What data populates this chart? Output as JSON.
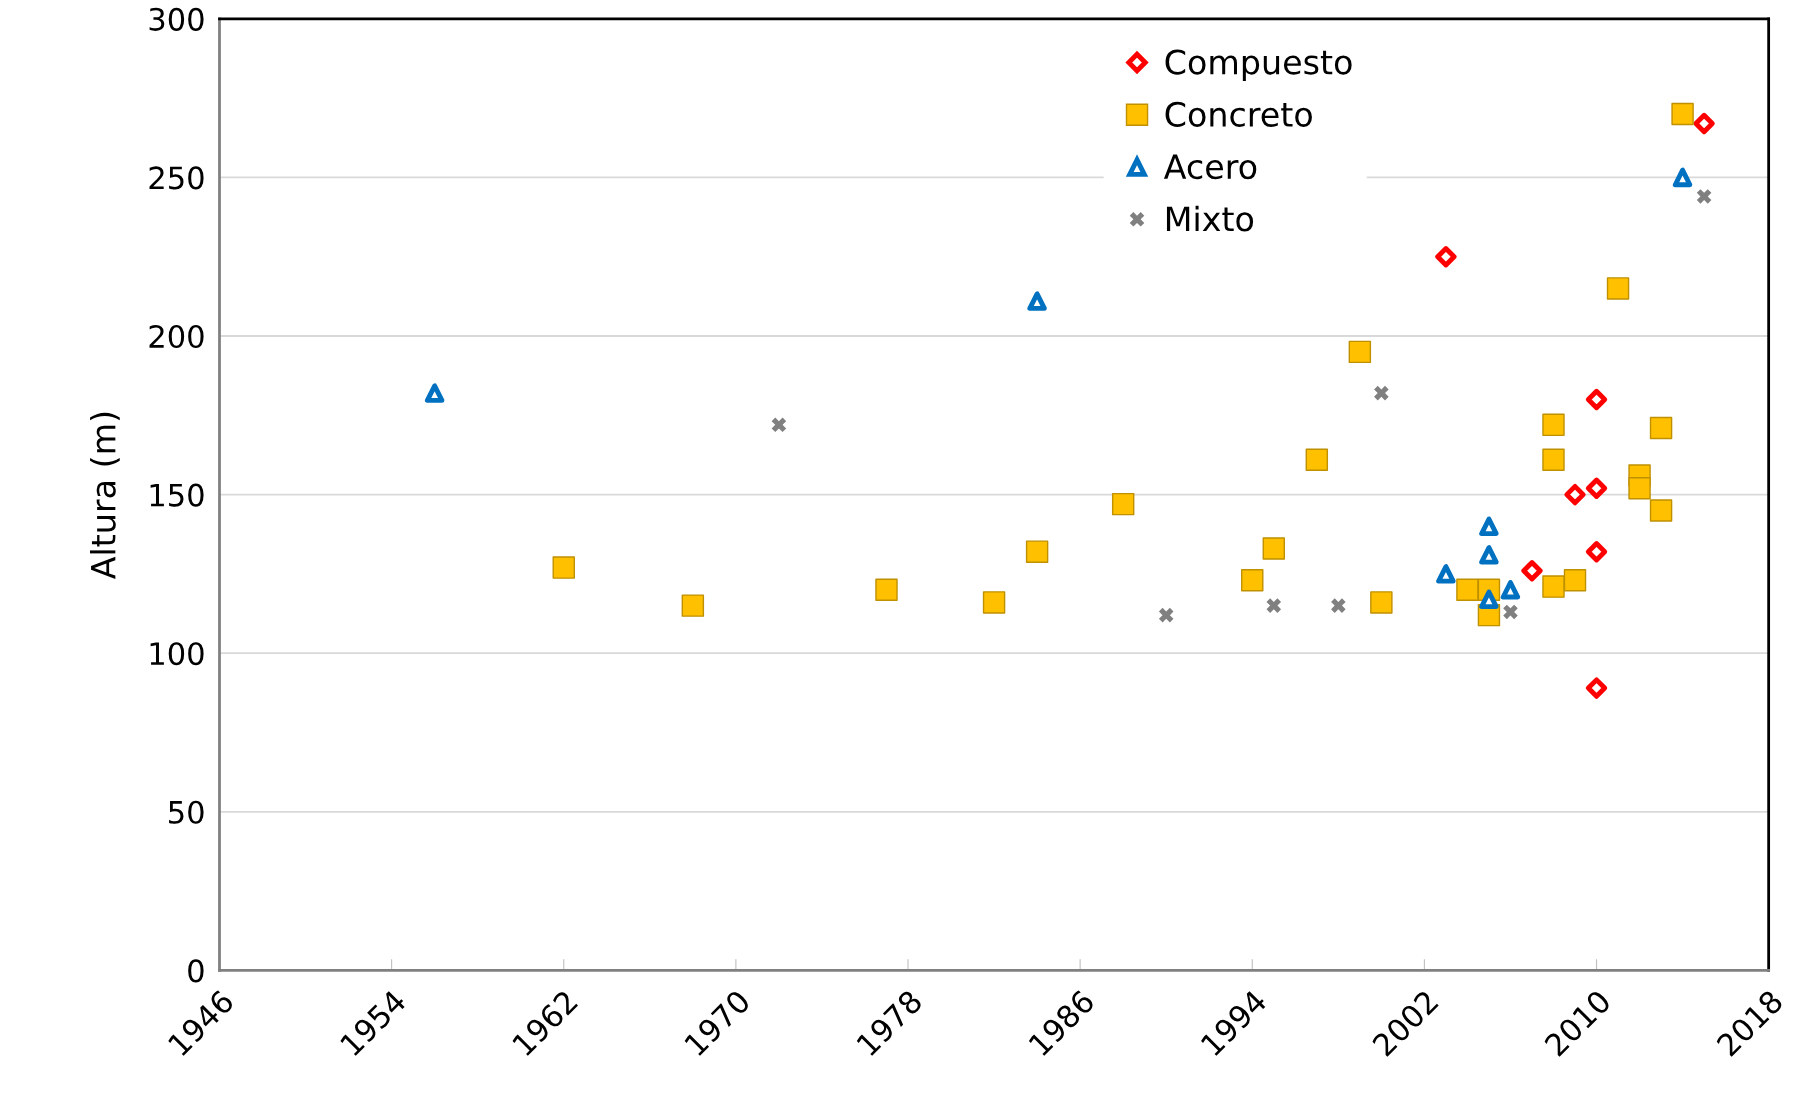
{
  "chart_data": {
    "type": "scatter",
    "ylabel": "Altura (m)",
    "xlim": [
      1946,
      2018
    ],
    "xticks": [
      1946,
      1954,
      1962,
      1970,
      1978,
      1986,
      1994,
      2002,
      2010,
      2018
    ],
    "ylim": [
      0,
      300
    ],
    "yticks": [
      0,
      50,
      100,
      150,
      200,
      250,
      300
    ],
    "grid": "y",
    "legend": "top right",
    "series": [
      {
        "name": "Compuesto",
        "color": "#ff0000",
        "marker": "diamond",
        "x": [
          2003,
          2015,
          2010,
          2009,
          2010,
          2007,
          2010,
          2010
        ],
        "values": [
          225,
          267,
          180,
          150,
          152,
          126,
          132,
          89
        ]
      },
      {
        "name": "Concreto",
        "color": "#ffc000",
        "marker": "square",
        "x": [
          1962,
          1968,
          1977,
          1982,
          1984,
          1988,
          1994,
          1995,
          1997,
          1999,
          2000,
          2004,
          2005,
          2005,
          2008,
          2008,
          2008,
          2009,
          2011,
          2012,
          2012,
          2013,
          2013,
          2014
        ],
        "values": [
          127,
          115,
          120,
          116,
          132,
          147,
          123,
          133,
          161,
          195,
          116,
          120,
          120,
          112,
          172,
          161,
          121,
          123,
          215,
          156,
          152,
          171,
          145,
          270
        ]
      },
      {
        "name": "Acero",
        "color": "#0070c0",
        "marker": "triangle",
        "x": [
          1956,
          1984,
          2003,
          2005,
          2005,
          2005,
          2006,
          2014
        ],
        "values": [
          182,
          211,
          125,
          140,
          131,
          117,
          120,
          250
        ]
      },
      {
        "name": "Mixto",
        "color": "#808080",
        "marker": "cross",
        "x": [
          1972,
          1990,
          1995,
          1998,
          2000,
          2006,
          2015
        ],
        "values": [
          172,
          112,
          115,
          115,
          182,
          113,
          244
        ]
      }
    ]
  }
}
